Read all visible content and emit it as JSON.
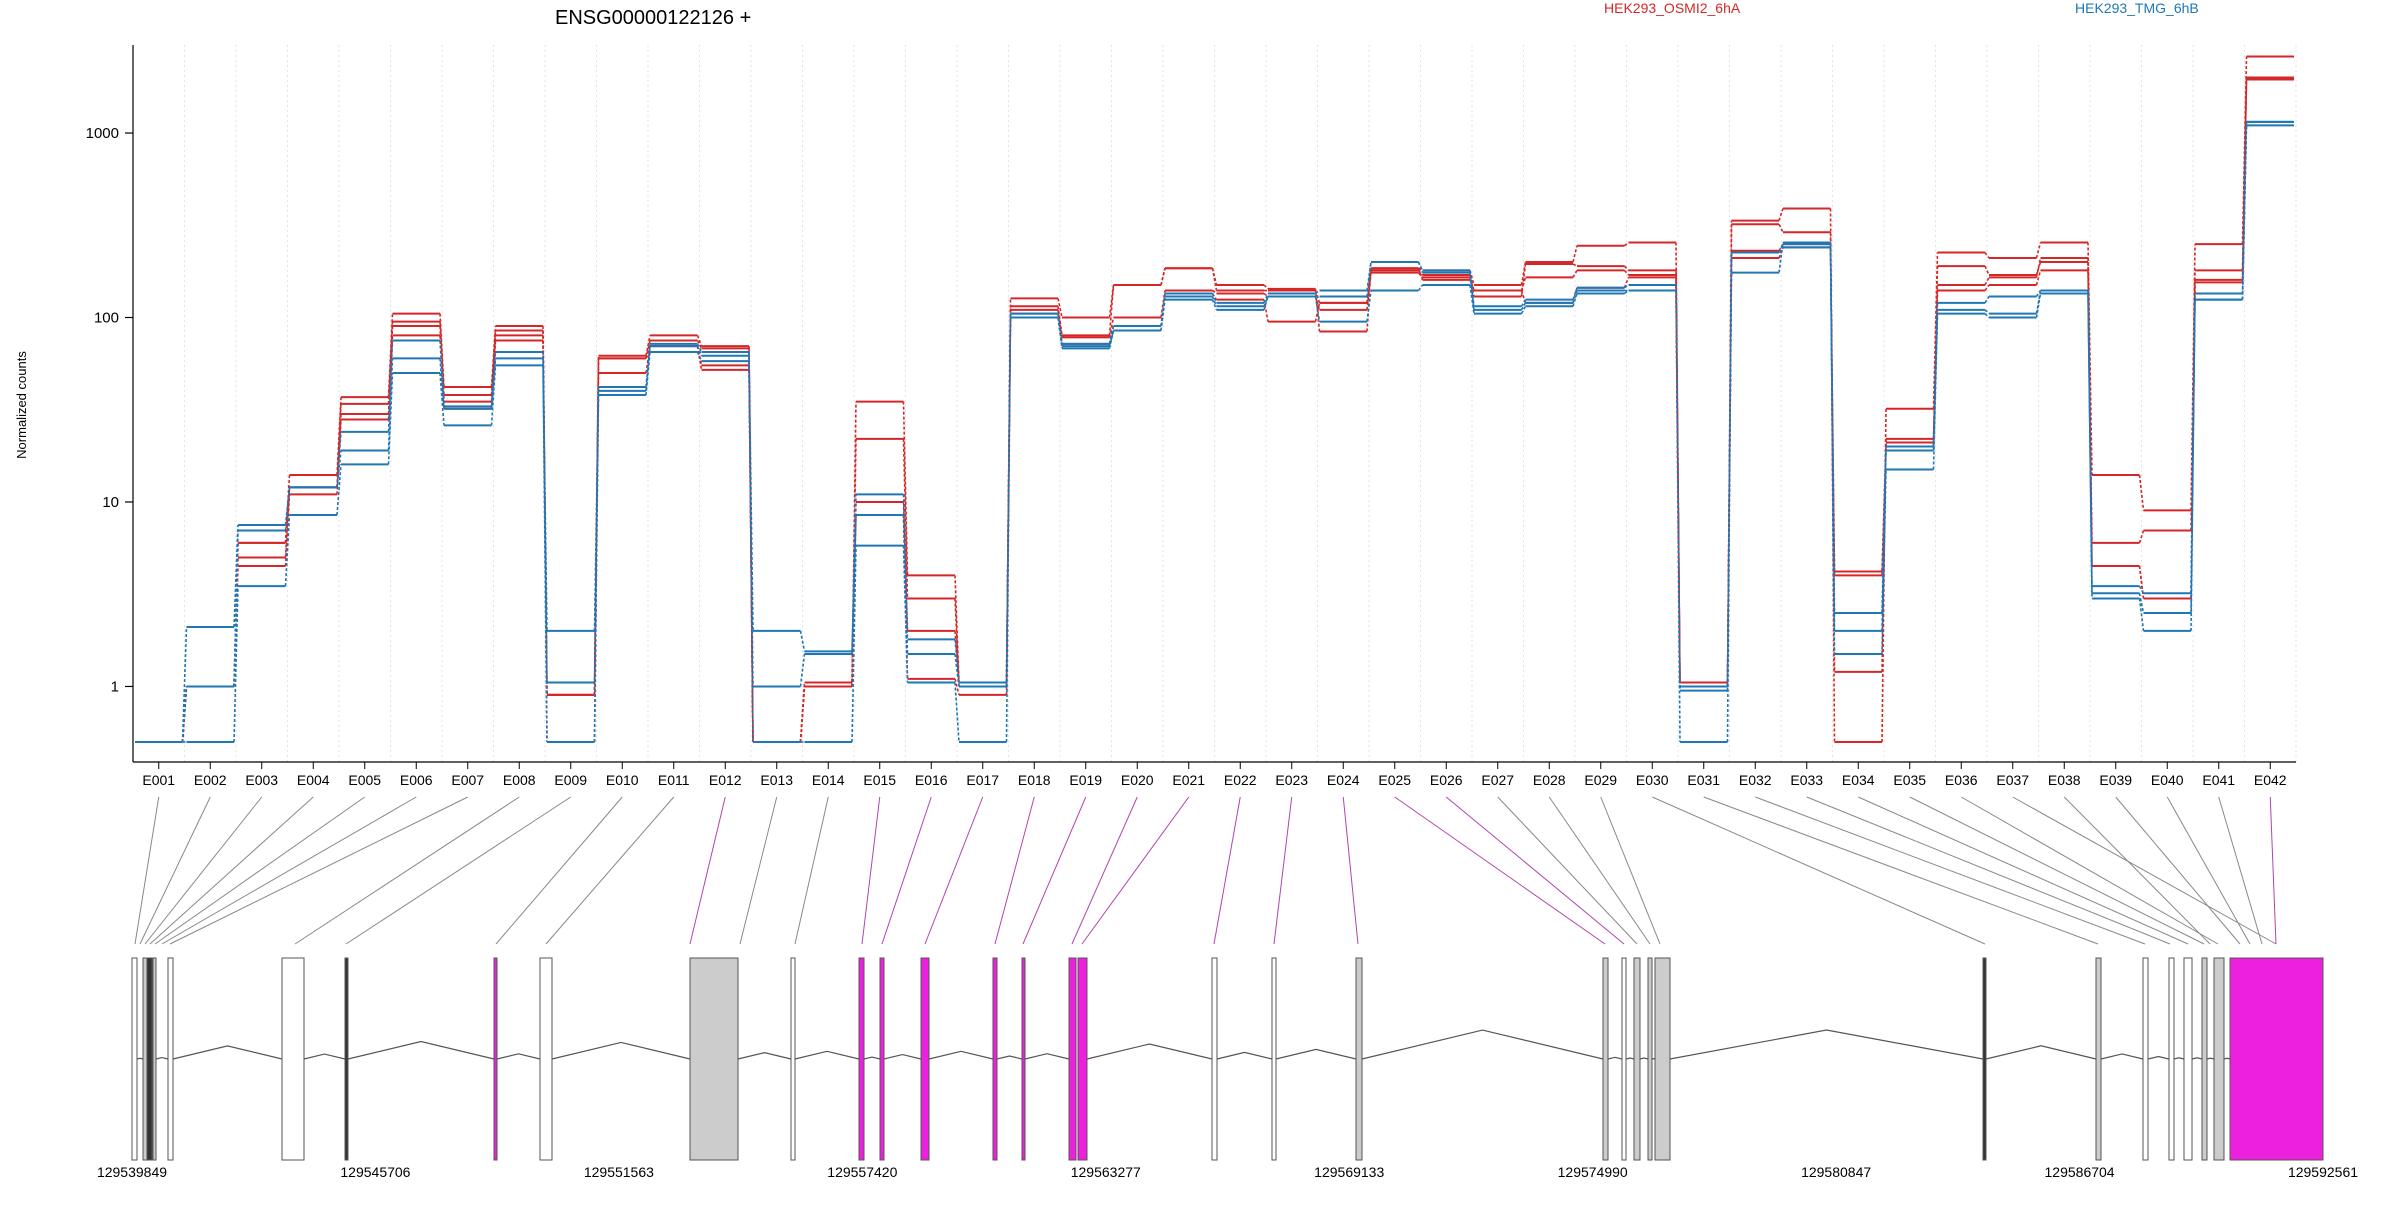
{
  "chart_data": {
    "type": "line",
    "title": "ENSG00000122126 +",
    "ylabel": "Normalized counts",
    "yscale": "log",
    "ylim": [
      0.5,
      3000
    ],
    "yticks": [
      1,
      10,
      100,
      1000
    ],
    "ytick_labels": [
      "1",
      "10",
      "100",
      "1000"
    ],
    "grid": "vertical dotted",
    "legend": [
      "HEK293_OSMI2_6hA",
      "HEK293_TMG_6hB"
    ],
    "legend_colors": [
      "#d62728",
      "#1f77b4"
    ],
    "categories": [
      "E001",
      "E002",
      "E003",
      "E004",
      "E005",
      "E006",
      "E007",
      "E008",
      "E009",
      "E010",
      "E011",
      "E012",
      "E013",
      "E014",
      "E015",
      "E016",
      "E017",
      "E018",
      "E019",
      "E020",
      "E021",
      "E022",
      "E023",
      "E024",
      "E025",
      "E026",
      "E027",
      "E028",
      "E029",
      "E030",
      "E031",
      "E032",
      "E033",
      "E034",
      "E035",
      "E036",
      "E037",
      "E038",
      "E039",
      "E040",
      "E041",
      "E042"
    ],
    "series": [
      {
        "group": "HEK293_OSMI2_6hA",
        "color": "#d62728",
        "values": [
          0.5,
          1,
          6,
          14,
          37,
          105,
          42,
          90,
          0.9,
          62,
          80,
          70,
          0.5,
          1.05,
          35,
          4,
          1.05,
          127,
          100,
          150,
          185,
          150,
          143,
          84,
          185,
          180,
          150,
          200,
          245,
          255,
          1.05,
          335,
          390,
          0.5,
          32,
          225,
          210,
          255,
          14,
          9,
          250,
          2600
        ]
      },
      {
        "group": "HEK293_OSMI2_6hA",
        "color": "#d62728",
        "values": [
          0.5,
          1,
          5,
          12,
          34,
          95,
          38,
          85,
          0.5,
          60,
          75,
          68,
          0.5,
          1,
          22,
          3,
          1,
          115,
          80,
          150,
          185,
          140,
          140,
          120,
          180,
          170,
          130,
          195,
          190,
          180,
          1,
          320,
          290,
          1.2,
          22,
          190,
          170,
          200,
          6,
          7,
          180,
          2000
        ]
      },
      {
        "group": "HEK293_OSMI2_6hA",
        "color": "#d62728",
        "values": [
          0.5,
          1,
          6,
          12,
          30,
          90,
          35,
          80,
          0.9,
          50,
          70,
          55,
          0.5,
          1,
          10,
          2,
          1.05,
          110,
          78,
          100,
          140,
          135,
          130,
          110,
          175,
          165,
          140,
          165,
          180,
          170,
          1,
          230,
          250,
          4.2,
          21,
          140,
          150,
          180,
          4.5,
          3,
          155,
          1950
        ]
      },
      {
        "group": "HEK293_OSMI2_6hA",
        "color": "#d62728",
        "values": [
          0.5,
          1,
          4.5,
          11,
          28,
          80,
          32,
          75,
          0.9,
          60,
          70,
          52,
          0.5,
          1,
          8.5,
          1.1,
          0.9,
          100,
          72,
          90,
          135,
          125,
          95,
          120,
          185,
          160,
          140,
          120,
          145,
          165,
          1.05,
          210,
          240,
          4,
          20,
          150,
          165,
          210,
          4.5,
          3,
          160,
          1950
        ]
      },
      {
        "group": "HEK293_TMG_6hB",
        "color": "#1f77b4",
        "values": [
          0.5,
          2.1,
          7.5,
          12,
          24,
          75,
          33,
          65,
          2,
          42,
          72,
          65,
          2,
          1.55,
          11,
          1.8,
          1.05,
          105,
          72,
          90,
          135,
          120,
          135,
          140,
          200,
          180,
          115,
          125,
          145,
          150,
          1,
          175,
          255,
          2.5,
          20,
          120,
          130,
          140,
          3.5,
          3.2,
          135,
          1150
        ]
      },
      {
        "group": "HEK293_TMG_6hB",
        "color": "#1f77b4",
        "values": [
          0.5,
          1,
          7,
          12,
          19,
          60,
          32,
          60,
          1.05,
          40,
          70,
          62,
          1,
          1.5,
          8.5,
          1.5,
          1,
          105,
          70,
          85,
          130,
          115,
          130,
          130,
          200,
          175,
          110,
          120,
          140,
          140,
          0.95,
          225,
          250,
          2,
          19,
          110,
          105,
          140,
          3.2,
          2.5,
          125,
          1150
        ]
      },
      {
        "group": "HEK293_TMG_6hB",
        "color": "#1f77b4",
        "values": [
          0.5,
          0.5,
          3.5,
          8.5,
          16,
          50,
          26,
          55,
          0.5,
          38,
          65,
          58,
          0.5,
          0.5,
          5.8,
          1.05,
          0.5,
          100,
          68,
          85,
          125,
          110,
          130,
          95,
          140,
          150,
          105,
          115,
          135,
          140,
          0.5,
          225,
          240,
          1.5,
          15,
          105,
          100,
          135,
          3,
          2,
          125,
          1100
        ]
      }
    ],
    "gene_model": {
      "coordinate_ticks": [
        "129539849",
        "129545706",
        "129551563",
        "129557420",
        "129563277",
        "129569133",
        "129574990",
        "129580847",
        "129586704",
        "129592561"
      ]
    }
  }
}
